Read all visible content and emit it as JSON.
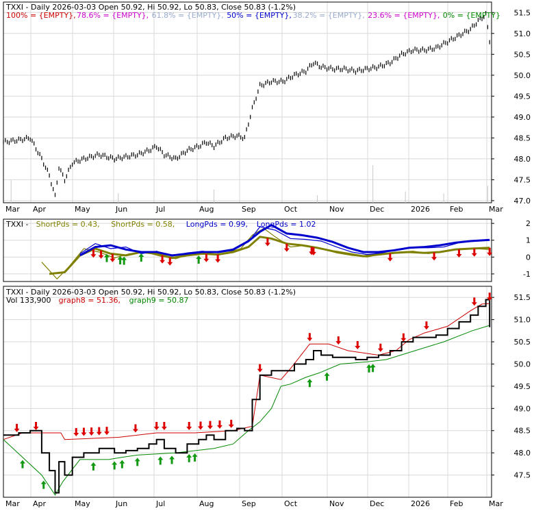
{
  "ticker": "TXXI",
  "chart_data": [
    {
      "type": "line",
      "panel": "price-fibonacci",
      "title": "TXXI - Daily 2026-03-03 Open 50.92, Hi 50.92, Lo 50.83, Close 50.83 (-1.2%)",
      "fib_legend": [
        {
          "text": "100% = {EMPTY},",
          "color": "#cc0000"
        },
        {
          "text": "78.6% = {EMPTY},",
          "color": "#cc00cc"
        },
        {
          "text": "61.8% = {EMPTY},",
          "color": "#99aacc"
        },
        {
          "text": "50% = {EMPTY},",
          "color": "#0000cc"
        },
        {
          "text": "38.2% = {EMPTY},",
          "color": "#99aacc"
        },
        {
          "text": "23.6% = {EMPTY},",
          "color": "#cc00cc"
        },
        {
          "text": "0% = {EMPTY}",
          "color": "#008800"
        }
      ],
      "x_ticks": [
        "Mar",
        "Apr",
        "May",
        "Jun",
        "Jul",
        "Aug",
        "Sep",
        "Oct",
        "Nov",
        "Dec",
        "2026",
        "Feb",
        "Mar"
      ],
      "y_ticks": [
        47.0,
        47.5,
        48.0,
        48.5,
        49.0,
        49.5,
        50.0,
        50.5,
        51.0,
        51.5
      ],
      "ylim": [
        46.95,
        51.75
      ],
      "price_points": [
        [
          0,
          48.4
        ],
        [
          8,
          48.45
        ],
        [
          14,
          48.5
        ],
        [
          20,
          48.0
        ],
        [
          24,
          47.6
        ],
        [
          27,
          47.1
        ],
        [
          29,
          47.8
        ],
        [
          32,
          47.5
        ],
        [
          36,
          47.9
        ],
        [
          42,
          48.0
        ],
        [
          50,
          48.1
        ],
        [
          58,
          48.0
        ],
        [
          64,
          48.05
        ],
        [
          70,
          48.1
        ],
        [
          76,
          48.2
        ],
        [
          80,
          48.3
        ],
        [
          84,
          48.1
        ],
        [
          90,
          48.0
        ],
        [
          96,
          48.2
        ],
        [
          102,
          48.3
        ],
        [
          106,
          48.4
        ],
        [
          110,
          48.3
        ],
        [
          116,
          48.5
        ],
        [
          122,
          48.55
        ],
        [
          126,
          48.5
        ],
        [
          130,
          49.2
        ],
        [
          134,
          49.75
        ],
        [
          140,
          49.85
        ],
        [
          146,
          49.85
        ],
        [
          152,
          50.0
        ],
        [
          158,
          50.1
        ],
        [
          162,
          50.3
        ],
        [
          166,
          50.2
        ],
        [
          172,
          50.15
        ],
        [
          178,
          50.15
        ],
        [
          184,
          50.1
        ],
        [
          190,
          50.15
        ],
        [
          196,
          50.2
        ],
        [
          202,
          50.3
        ],
        [
          208,
          50.5
        ],
        [
          214,
          50.6
        ],
        [
          220,
          50.6
        ],
        [
          226,
          50.65
        ],
        [
          232,
          50.8
        ],
        [
          238,
          50.95
        ],
        [
          244,
          51.1
        ],
        [
          248,
          51.3
        ],
        [
          252,
          51.45
        ],
        [
          254,
          50.83
        ]
      ],
      "volume_spikes": [
        [
          4,
          0.6
        ],
        [
          60,
          0.25
        ],
        [
          110,
          0.35
        ],
        [
          164,
          0.2
        ],
        [
          193,
          1.0
        ],
        [
          210,
          0.3
        ],
        [
          230,
          0.25
        ],
        [
          253,
          0.45
        ]
      ]
    },
    {
      "type": "line",
      "panel": "oscillator",
      "title": "TXXI - ShortPds = 0.43, ShortPds = 0.58, LongPds = 0.99, LongPds = 1.02",
      "legend": [
        {
          "text": "TXXI -",
          "color": "#000000"
        },
        {
          "text": "ShortPds = 0.43,",
          "color": "#808000"
        },
        {
          "text": "ShortPds = 0.58,",
          "color": "#808000"
        },
        {
          "text": "LongPds = 0.99,",
          "color": "#0000cc"
        },
        {
          "text": "LongPds = 1.02",
          "color": "#0000cc"
        }
      ],
      "y_ticks": [
        -1,
        0,
        1,
        2
      ],
      "ylim": [
        -1.45,
        2.25
      ],
      "series": [
        {
          "name": "ShortPds",
          "color": "#808000",
          "points": [
            [
              20,
              -0.3
            ],
            [
              28,
              -1.3
            ],
            [
              34,
              -0.6
            ],
            [
              42,
              0.5
            ],
            [
              50,
              0.3
            ],
            [
              58,
              -0.05
            ],
            [
              66,
              0.2
            ],
            [
              74,
              0.3
            ],
            [
              82,
              0.05
            ],
            [
              90,
              -0.1
            ],
            [
              98,
              0.2
            ],
            [
              106,
              0.25
            ],
            [
              112,
              0.1
            ],
            [
              118,
              0.3
            ],
            [
              124,
              0.5
            ],
            [
              130,
              1.3
            ],
            [
              136,
              1.7
            ],
            [
              142,
              1.2
            ],
            [
              150,
              0.6
            ],
            [
              158,
              0.7
            ],
            [
              166,
              0.5
            ],
            [
              174,
              0.25
            ],
            [
              182,
              0.1
            ],
            [
              190,
              0.0
            ],
            [
              198,
              0.2
            ],
            [
              206,
              0.3
            ],
            [
              214,
              0.35
            ],
            [
              222,
              0.2
            ],
            [
              230,
              0.35
            ],
            [
              238,
              0.5
            ],
            [
              246,
              0.5
            ],
            [
              254,
              0.45
            ]
          ]
        },
        {
          "name": "ShortPds",
          "color": "#808000",
          "points": [
            [
              24,
              -1.0
            ],
            [
              32,
              -0.9
            ],
            [
              40,
              0.1
            ],
            [
              48,
              0.5
            ],
            [
              56,
              0.2
            ],
            [
              64,
              0.1
            ],
            [
              72,
              0.3
            ],
            [
              80,
              0.2
            ],
            [
              88,
              -0.05
            ],
            [
              96,
              0.1
            ],
            [
              104,
              0.2
            ],
            [
              112,
              0.15
            ],
            [
              120,
              0.3
            ],
            [
              128,
              0.6
            ],
            [
              134,
              1.2
            ],
            [
              140,
              1.1
            ],
            [
              148,
              0.8
            ],
            [
              156,
              0.7
            ],
            [
              164,
              0.55
            ],
            [
              172,
              0.35
            ],
            [
              180,
              0.2
            ],
            [
              188,
              0.05
            ],
            [
              196,
              0.15
            ],
            [
              204,
              0.25
            ],
            [
              212,
              0.3
            ],
            [
              220,
              0.25
            ],
            [
              228,
              0.3
            ],
            [
              236,
              0.45
            ],
            [
              244,
              0.5
            ],
            [
              254,
              0.55
            ]
          ]
        },
        {
          "name": "LongPds",
          "color": "#0000cc",
          "points": [
            [
              40,
              0.2
            ],
            [
              48,
              0.8
            ],
            [
              56,
              0.5
            ],
            [
              64,
              0.6
            ],
            [
              72,
              0.2
            ],
            [
              80,
              0.35
            ],
            [
              88,
              0.05
            ],
            [
              96,
              0.25
            ],
            [
              104,
              0.35
            ],
            [
              112,
              0.25
            ],
            [
              120,
              0.4
            ],
            [
              128,
              0.9
            ],
            [
              134,
              1.8
            ],
            [
              142,
              1.6
            ],
            [
              150,
              1.1
            ],
            [
              158,
              1.05
            ],
            [
              166,
              0.95
            ],
            [
              174,
              0.6
            ],
            [
              182,
              0.3
            ],
            [
              190,
              0.15
            ],
            [
              198,
              0.25
            ],
            [
              206,
              0.45
            ],
            [
              214,
              0.55
            ],
            [
              222,
              0.55
            ],
            [
              230,
              0.6
            ],
            [
              238,
              0.85
            ],
            [
              246,
              1.0
            ],
            [
              254,
              0.99
            ]
          ]
        },
        {
          "name": "LongPds",
          "color": "#0000cc",
          "points": [
            [
              40,
              0.1
            ],
            [
              48,
              0.6
            ],
            [
              56,
              0.7
            ],
            [
              64,
              0.45
            ],
            [
              72,
              0.3
            ],
            [
              80,
              0.3
            ],
            [
              88,
              0.1
            ],
            [
              96,
              0.2
            ],
            [
              104,
              0.3
            ],
            [
              112,
              0.3
            ],
            [
              120,
              0.45
            ],
            [
              128,
              0.95
            ],
            [
              134,
              1.5
            ],
            [
              140,
              1.9
            ],
            [
              148,
              1.4
            ],
            [
              156,
              1.3
            ],
            [
              164,
              1.15
            ],
            [
              172,
              0.9
            ],
            [
              180,
              0.55
            ],
            [
              188,
              0.3
            ],
            [
              196,
              0.3
            ],
            [
              204,
              0.4
            ],
            [
              212,
              0.55
            ],
            [
              220,
              0.6
            ],
            [
              228,
              0.7
            ],
            [
              236,
              0.85
            ],
            [
              244,
              0.95
            ],
            [
              254,
              1.02
            ]
          ]
        }
      ],
      "buy_signals": [
        54,
        61,
        63,
        72,
        102
      ],
      "sell_signals": [
        47,
        51,
        57,
        83,
        87,
        106,
        112,
        138,
        148,
        161,
        162,
        202,
        225,
        238,
        246,
        254
      ]
    },
    {
      "type": "line",
      "panel": "price-bands",
      "title": "TXXI - Daily 2026-03-03 Open 50.92, Hi 50.92, Lo 50.83, Close 50.83 (-1.2%)",
      "legend": [
        {
          "text": "Vol 133,900",
          "color": "#000000"
        },
        {
          "text": "graph8 = 51.36,",
          "color": "#cc0000"
        },
        {
          "text": "graph9 = 50.87",
          "color": "#008800"
        }
      ],
      "y_ticks": [
        47.5,
        48.0,
        48.5,
        49.0,
        49.5,
        50.0,
        50.5,
        51.0,
        51.5
      ],
      "ylim": [
        47.0,
        51.75
      ],
      "series": [
        {
          "name": "graph8",
          "color": "#cc0000",
          "points": [
            [
              0,
              48.3
            ],
            [
              10,
              48.45
            ],
            [
              30,
              48.45
            ],
            [
              32,
              48.3
            ],
            [
              60,
              48.35
            ],
            [
              80,
              48.45
            ],
            [
              100,
              48.45
            ],
            [
              120,
              48.5
            ],
            [
              130,
              48.6
            ],
            [
              134,
              49.75
            ],
            [
              145,
              49.65
            ],
            [
              150,
              49.9
            ],
            [
              160,
              50.45
            ],
            [
              170,
              50.45
            ],
            [
              180,
              50.3
            ],
            [
              196,
              50.2
            ],
            [
              205,
              50.3
            ],
            [
              212,
              50.55
            ],
            [
              220,
              50.7
            ],
            [
              232,
              50.85
            ],
            [
              244,
              51.2
            ],
            [
              250,
              51.35
            ],
            [
              254,
              51.36
            ]
          ]
        },
        {
          "name": "graph9",
          "color": "#008800",
          "points": [
            [
              0,
              48.3
            ],
            [
              20,
              47.5
            ],
            [
              27,
              47.05
            ],
            [
              31,
              47.35
            ],
            [
              40,
              47.85
            ],
            [
              55,
              47.85
            ],
            [
              62,
              47.9
            ],
            [
              70,
              47.95
            ],
            [
              90,
              48.0
            ],
            [
              110,
              48.1
            ],
            [
              120,
              48.2
            ],
            [
              128,
              48.5
            ],
            [
              134,
              48.7
            ],
            [
              140,
              49.0
            ],
            [
              145,
              49.5
            ],
            [
              150,
              49.55
            ],
            [
              158,
              49.7
            ],
            [
              165,
              49.8
            ],
            [
              176,
              50.0
            ],
            [
              190,
              50.05
            ],
            [
              200,
              50.1
            ],
            [
              215,
              50.3
            ],
            [
              230,
              50.5
            ],
            [
              245,
              50.75
            ],
            [
              254,
              50.87
            ]
          ]
        }
      ],
      "buy_signals": [
        10,
        21,
        47,
        58,
        62,
        70,
        82,
        88,
        97,
        100,
        160,
        169,
        191,
        193
      ],
      "sell_signals": [
        7,
        17,
        38,
        42,
        46,
        50,
        54,
        69,
        80,
        84,
        97,
        103,
        108,
        113,
        119,
        134,
        160,
        175,
        185,
        197,
        209,
        221,
        246,
        254
      ]
    }
  ]
}
